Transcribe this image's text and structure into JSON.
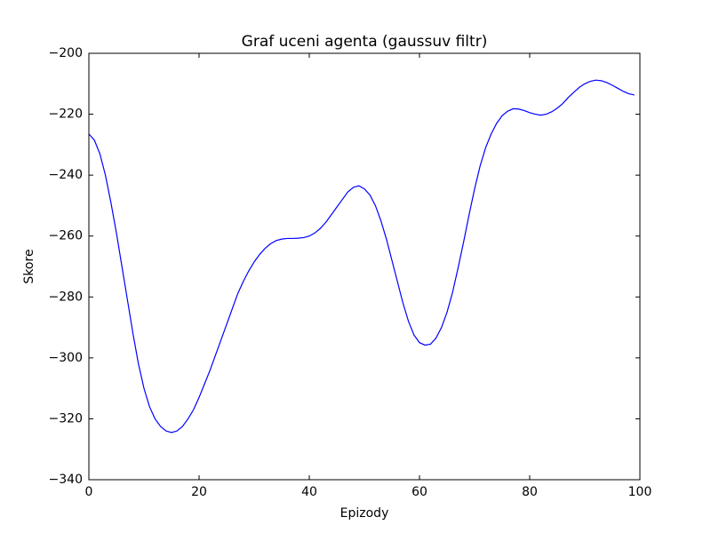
{
  "chart_data": {
    "type": "line",
    "title": "Graf uceni agenta (gaussuv filtr)",
    "xlabel": "Epizody",
    "ylabel": "Skore",
    "x": [
      0,
      1,
      2,
      3,
      4,
      5,
      6,
      7,
      8,
      9,
      10,
      11,
      12,
      13,
      14,
      15,
      16,
      17,
      18,
      19,
      20,
      21,
      22,
      23,
      24,
      25,
      26,
      27,
      28,
      29,
      30,
      31,
      32,
      33,
      34,
      35,
      36,
      37,
      38,
      39,
      40,
      41,
      42,
      43,
      44,
      45,
      46,
      47,
      48,
      49,
      50,
      51,
      52,
      53,
      54,
      55,
      56,
      57,
      58,
      59,
      60,
      61,
      62,
      63,
      64,
      65,
      66,
      67,
      68,
      69,
      70,
      71,
      72,
      73,
      74,
      75,
      76,
      77,
      78,
      79,
      80,
      81,
      82,
      83,
      84,
      85,
      86,
      87,
      88,
      89,
      90,
      91,
      92,
      93,
      94,
      95,
      96,
      97,
      98,
      99
    ],
    "series": [
      {
        "name": "skore",
        "color": "#0000ff",
        "values": [
          -226.5,
          -228.5,
          -233,
          -240,
          -249,
          -259,
          -270,
          -281,
          -292,
          -302,
          -310,
          -316,
          -320,
          -322.5,
          -324,
          -324.5,
          -324,
          -322.5,
          -320,
          -317,
          -313,
          -308.5,
          -304,
          -299,
          -294,
          -289,
          -284,
          -279,
          -275,
          -271.5,
          -268.5,
          -266,
          -264,
          -262.5,
          -261.5,
          -261,
          -260.8,
          -260.8,
          -260.7,
          -260.5,
          -260,
          -259,
          -257.5,
          -255.5,
          -253,
          -250.5,
          -248,
          -245.5,
          -244,
          -243.5,
          -244.5,
          -246.5,
          -250,
          -255,
          -261,
          -268,
          -275,
          -282,
          -288,
          -292.5,
          -295,
          -295.8,
          -295.5,
          -293.5,
          -290,
          -285,
          -278.5,
          -270.5,
          -262,
          -253,
          -244.5,
          -237,
          -231,
          -226.5,
          -223,
          -220.5,
          -219,
          -218.2,
          -218.3,
          -218.8,
          -219.5,
          -220,
          -220.3,
          -220,
          -219.2,
          -218,
          -216.5,
          -214.5,
          -212.8,
          -211.2,
          -210,
          -209.2,
          -208.8,
          -209,
          -209.6,
          -210.5,
          -211.5,
          -212.5,
          -213.3,
          -213.7
        ]
      }
    ],
    "xlim": [
      0,
      100
    ],
    "xticks": [
      0,
      20,
      40,
      60,
      80,
      100
    ],
    "ylim": [
      -340,
      -200
    ],
    "yticks": [
      {
        "value": -340,
        "label": "−340"
      },
      {
        "value": -320,
        "label": "−320"
      },
      {
        "value": -300,
        "label": "−300"
      },
      {
        "value": -280,
        "label": "−280"
      },
      {
        "value": -260,
        "label": "−260"
      },
      {
        "value": -240,
        "label": "−240"
      },
      {
        "value": -220,
        "label": "−220"
      },
      {
        "value": -200,
        "label": "−200"
      }
    ]
  }
}
